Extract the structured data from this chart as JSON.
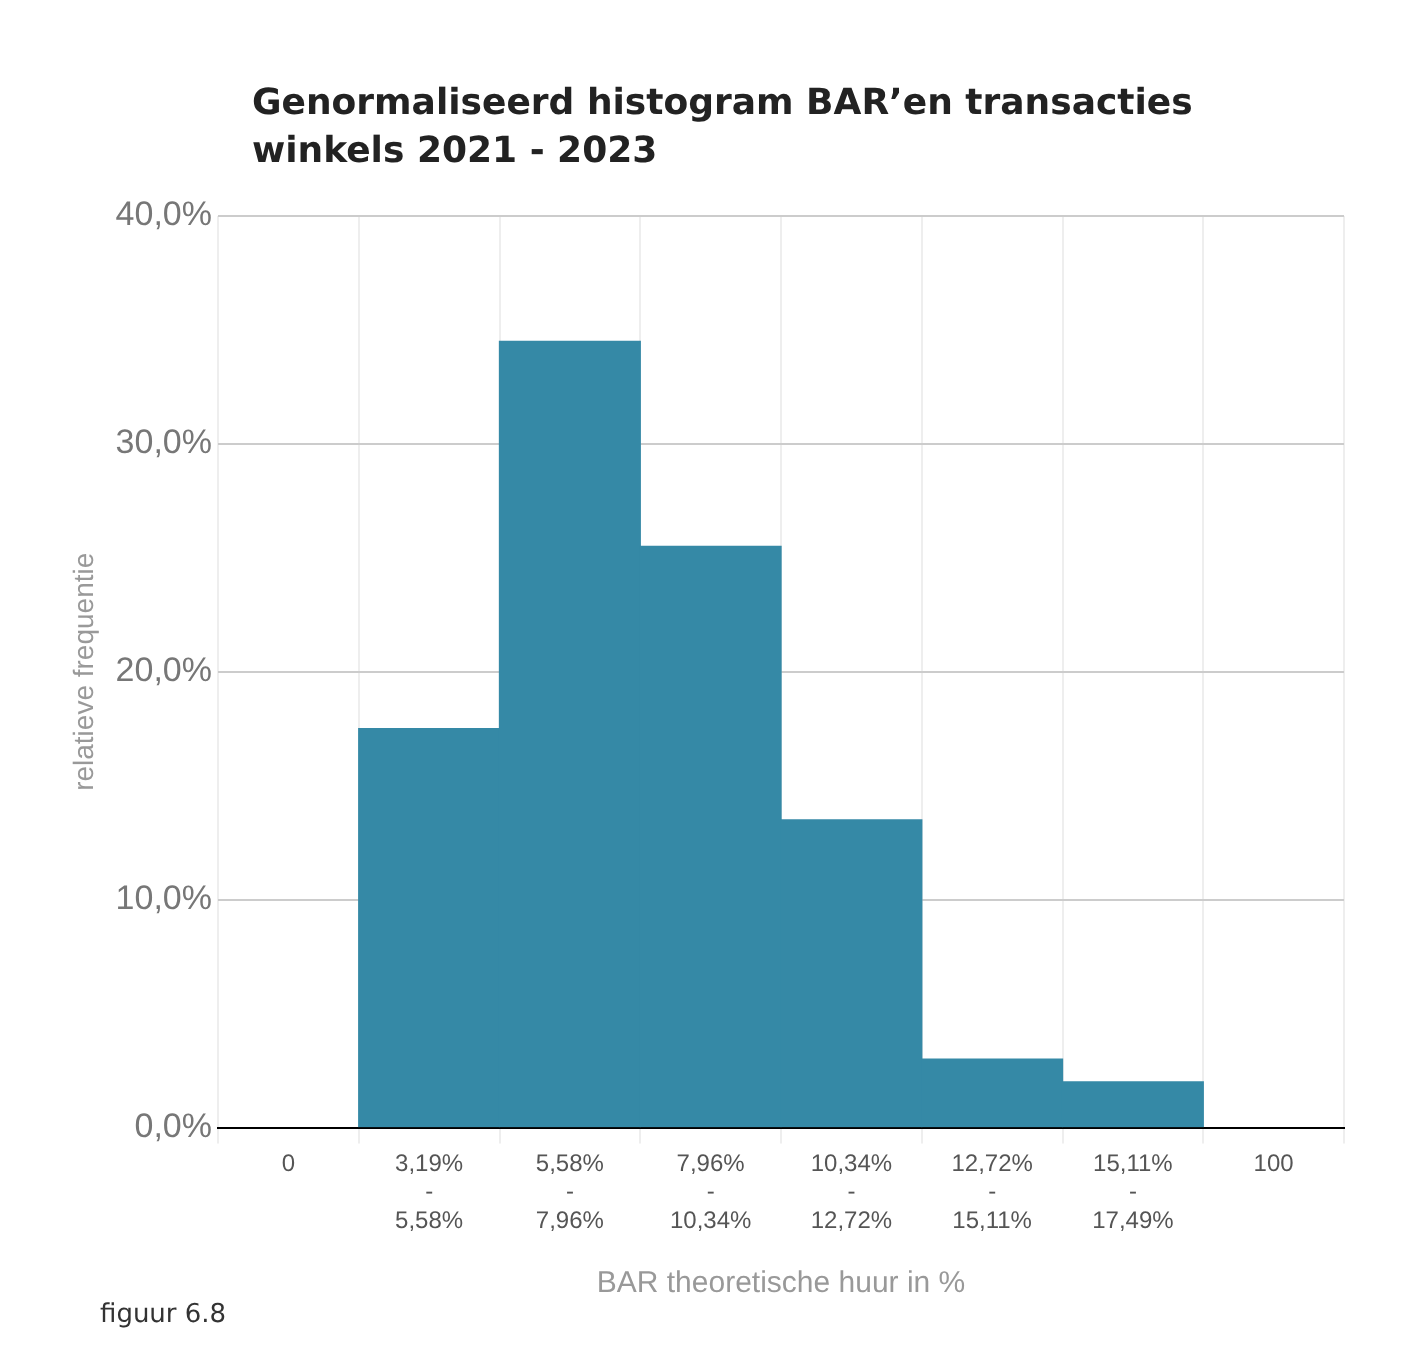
{
  "chart_data": {
    "type": "bar",
    "title": "Genormaliseerd histogram BAR’en transacties\nwinkels 2021 - 2023",
    "xlabel": "BAR theoretische huur in %",
    "ylabel": "relatieve frequentie",
    "categories": [
      "0",
      "3,19%\n-\n5,58%",
      "5,58%\n-\n7,96%",
      "7,96%\n-\n10,34%",
      "10,34%\n-\n12,72%",
      "12,72%\n-\n15,11%",
      "15,11%\n-\n17,49%",
      "100"
    ],
    "values": [
      null,
      17.5,
      34.5,
      25.5,
      13.5,
      3,
      2,
      null
    ],
    "color": "#3589a6",
    "ylim": [
      0,
      40
    ],
    "yticks": [
      {
        "value": 0,
        "label": "0,0%"
      },
      {
        "value": 10,
        "label": "10,0%"
      },
      {
        "value": 20,
        "label": "20,0%"
      },
      {
        "value": 30,
        "label": "30,0%"
      },
      {
        "value": 40,
        "label": "40,0%"
      }
    ],
    "grid": true,
    "legend": false,
    "annotations": [
      "figuur 6.8"
    ]
  }
}
